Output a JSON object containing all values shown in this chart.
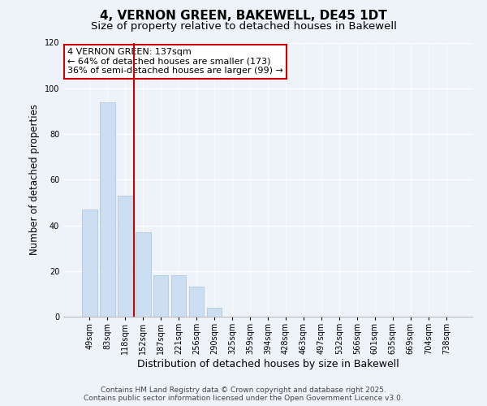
{
  "title": "4, VERNON GREEN, BAKEWELL, DE45 1DT",
  "subtitle": "Size of property relative to detached houses in Bakewell",
  "xlabel": "Distribution of detached houses by size in Bakewell",
  "ylabel": "Number of detached properties",
  "bar_labels": [
    "49sqm",
    "83sqm",
    "118sqm",
    "152sqm",
    "187sqm",
    "221sqm",
    "256sqm",
    "290sqm",
    "325sqm",
    "359sqm",
    "394sqm",
    "428sqm",
    "463sqm",
    "497sqm",
    "532sqm",
    "566sqm",
    "601sqm",
    "635sqm",
    "669sqm",
    "704sqm",
    "738sqm"
  ],
  "bar_values": [
    47,
    94,
    53,
    37,
    18,
    18,
    13,
    4,
    0,
    0,
    0,
    0,
    0,
    0,
    0,
    0,
    0,
    0,
    0,
    0,
    0
  ],
  "bar_color": "#ccdff2",
  "bar_edge_color": "#aabfd8",
  "vline_xindex": 2.5,
  "vline_color": "#cc0000",
  "annotation_line1": "4 VERNON GREEN: 137sqm",
  "annotation_line2": "← 64% of detached houses are smaller (173)",
  "annotation_line3": "36% of semi-detached houses are larger (99) →",
  "annotation_box_edge_color": "#cc0000",
  "ylim_max": 120,
  "yticks": [
    0,
    20,
    40,
    60,
    80,
    100,
    120
  ],
  "background_color": "#eef2f9",
  "plot_bg_color": "#eef2f9",
  "footer_line1": "Contains HM Land Registry data © Crown copyright and database right 2025.",
  "footer_line2": "Contains public sector information licensed under the Open Government Licence v3.0.",
  "title_fontsize": 11,
  "subtitle_fontsize": 9.5,
  "xlabel_fontsize": 9,
  "ylabel_fontsize": 8.5,
  "tick_fontsize": 7,
  "annotation_fontsize": 8,
  "footer_fontsize": 6.5
}
